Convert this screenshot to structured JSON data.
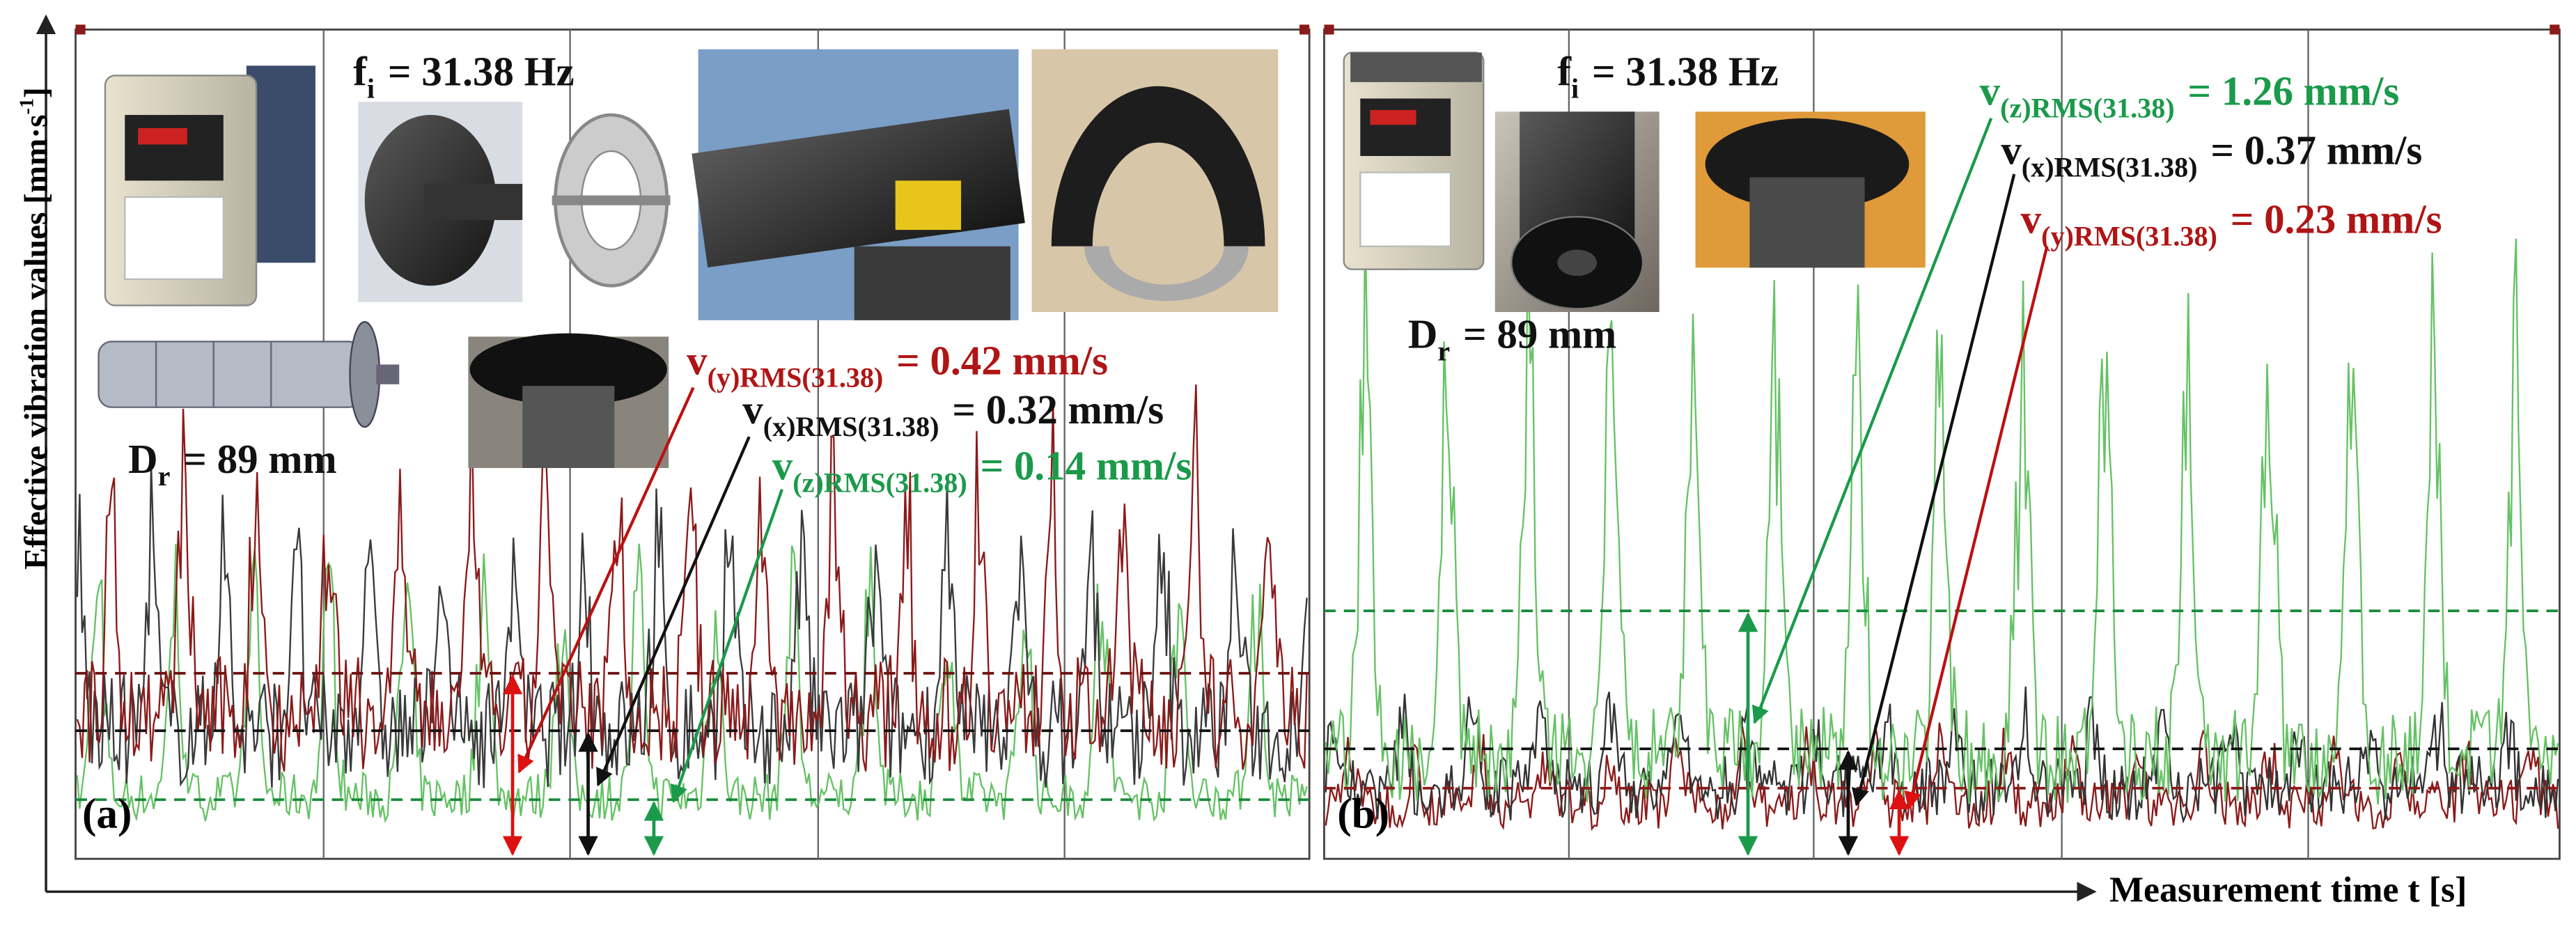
{
  "axes": {
    "y_label": {
      "text": "Effective vibration values [mm·s",
      "superscript": "-1",
      "close": "]"
    },
    "x_label": "Measurement time t [s]"
  },
  "panels": [
    {
      "label": "(a)",
      "frequency": {
        "symbol": "f",
        "subscript": "i",
        "text": "= 31.38 Hz"
      },
      "diameter": {
        "symbol": "D",
        "subscript": "r",
        "text": "= 89 mm"
      },
      "annotations": [
        {
          "symbol": "v",
          "subscript": "(y)RMS(31.38)",
          "text": "= 0.42 mm/s"
        },
        {
          "symbol": "v",
          "subscript": "(x)RMS(31.38)",
          "text": "= 0.32 mm/s"
        },
        {
          "symbol": "v",
          "subscript": "(z)RMS(31.38)",
          "text": "= 0.14 mm/s"
        }
      ]
    },
    {
      "label": "(b)",
      "frequency": {
        "symbol": "f",
        "subscript": "i",
        "text": "= 31.38 Hz"
      },
      "diameter": {
        "symbol": "D",
        "subscript": "r",
        "text": "= 89 mm"
      },
      "annotations": [
        {
          "symbol": "v",
          "subscript": "(z)RMS(31.38)",
          "text": "= 1.26 mm/s"
        },
        {
          "symbol": "v",
          "subscript": "(x)RMS(31.38)",
          "text": "= 0.37 mm/s"
        },
        {
          "symbol": "v",
          "subscript": "(y)RMS(31.38)",
          "text": "= 0.23 mm/s"
        }
      ]
    }
  ]
}
